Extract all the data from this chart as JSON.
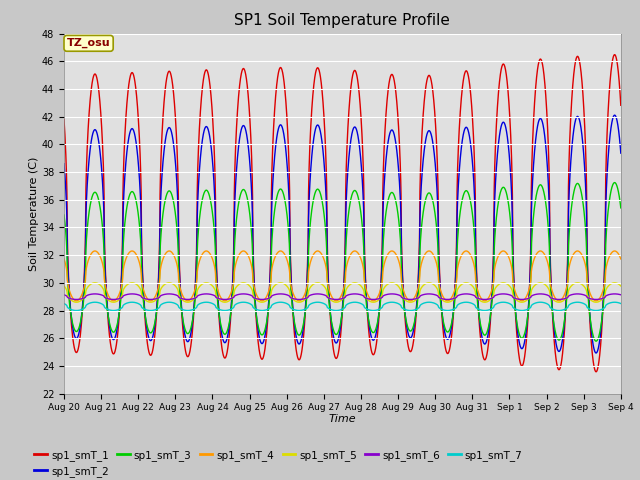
{
  "title": "SP1 Soil Temperature Profile",
  "xlabel": "Time",
  "ylabel": "Soil Temperature (C)",
  "ylim": [
    22,
    48
  ],
  "yticks": [
    22,
    24,
    26,
    28,
    30,
    32,
    34,
    36,
    38,
    40,
    42,
    44,
    46,
    48
  ],
  "fig_bg": "#c8c8c8",
  "plot_bg": "#e0e0e0",
  "annotation_text": "TZ_osu",
  "annotation_bg": "#ffffcc",
  "annotation_border": "#999900",
  "annotation_text_color": "#880000",
  "series_colors": {
    "sp1_smT_1": "#dd0000",
    "sp1_smT_2": "#0000dd",
    "sp1_smT_3": "#00cc00",
    "sp1_smT_4": "#ff9900",
    "sp1_smT_5": "#dddd00",
    "sp1_smT_6": "#8800cc",
    "sp1_smT_7": "#00cccc"
  },
  "tick_labels": [
    "Aug 20",
    "Aug 21",
    "Aug 22",
    "Aug 23",
    "Aug 24",
    "Aug 25",
    "Aug 26",
    "Aug 27",
    "Aug 28",
    "Aug 29",
    "Aug 30",
    "Aug 31",
    "Sep 1",
    "Sep 2",
    "Sep 3",
    "Sep 4"
  ],
  "num_days": 15,
  "T1_base": 35.0,
  "T1_amp": 10.0,
  "T2_base": 33.5,
  "T2_amp": 7.5,
  "T3_base": 31.5,
  "T3_amp": 5.0,
  "T4_base": 30.5,
  "T4_amp": 1.8,
  "T5_base": 29.3,
  "T5_amp": 0.7,
  "T6_base": 29.0,
  "T6_amp": 0.2,
  "T7_base": 28.3,
  "T7_amp": 0.3
}
